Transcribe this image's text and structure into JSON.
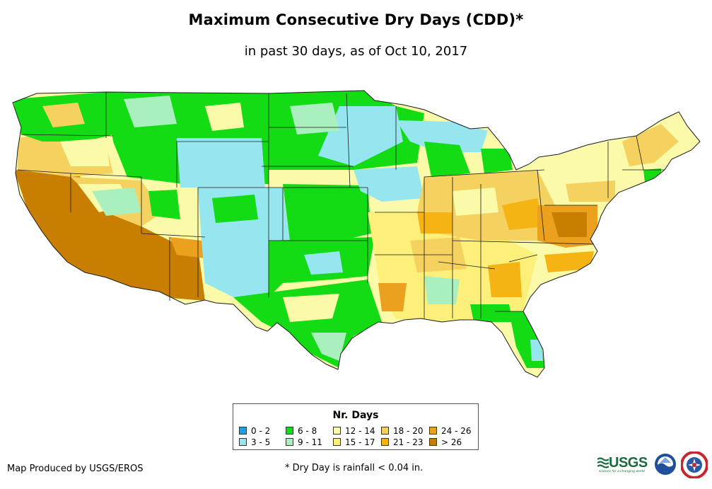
{
  "title": "Maximum Consecutive Dry Days (CDD)*",
  "subtitle": "in past 30 days, as of Oct 10, 2017",
  "legend": {
    "title": "Nr. Days",
    "items": [
      {
        "label": "0 - 2",
        "color": "#1aa0e6"
      },
      {
        "label": "3 - 5",
        "color": "#96e6f0"
      },
      {
        "label": "6 - 8",
        "color": "#14dc14"
      },
      {
        "label": "9 - 11",
        "color": "#aaf0be"
      },
      {
        "label": "12 - 14",
        "color": "#fafaa8"
      },
      {
        "label": "15 - 17",
        "color": "#fcf07a"
      },
      {
        "label": "18 - 20",
        "color": "#f5d25f"
      },
      {
        "label": "21 - 23",
        "color": "#f5b414"
      },
      {
        "label": "24 - 26",
        "color": "#eba01e"
      },
      {
        "label": "> 26",
        "color": "#c87e00"
      }
    ]
  },
  "footer": {
    "credit": "Map Produced by USGS/EROS",
    "footnote": "* Dry Day is rainfall < 0.04 in."
  },
  "logos": {
    "usgs": {
      "name": "usgs-logo",
      "text": "USGS",
      "tagline": "science for a changing world"
    },
    "noaa": {
      "name": "noaa-logo",
      "text": "NOAA"
    },
    "nws": {
      "name": "nws-logo",
      "text": "NWS"
    }
  },
  "map_regions": [
    {
      "name": "pacific-northwest",
      "category": "6 - 8"
    },
    {
      "name": "california-coast",
      "category": "> 26"
    },
    {
      "name": "southwest-desert",
      "category": "> 26"
    },
    {
      "name": "great-basin",
      "category": "18 - 20"
    },
    {
      "name": "northern-plains",
      "category": "6 - 8"
    },
    {
      "name": "central-plains",
      "category": "3 - 5"
    },
    {
      "name": "upper-midwest",
      "category": "3 - 5"
    },
    {
      "name": "ohio-valley",
      "category": "18 - 20"
    },
    {
      "name": "mid-atlantic",
      "category": "24 - 26"
    },
    {
      "name": "southeast",
      "category": "15 - 17"
    },
    {
      "name": "gulf-coast",
      "category": "6 - 8"
    },
    {
      "name": "florida",
      "category": "6 - 8"
    },
    {
      "name": "northeast",
      "category": "18 - 20"
    }
  ]
}
